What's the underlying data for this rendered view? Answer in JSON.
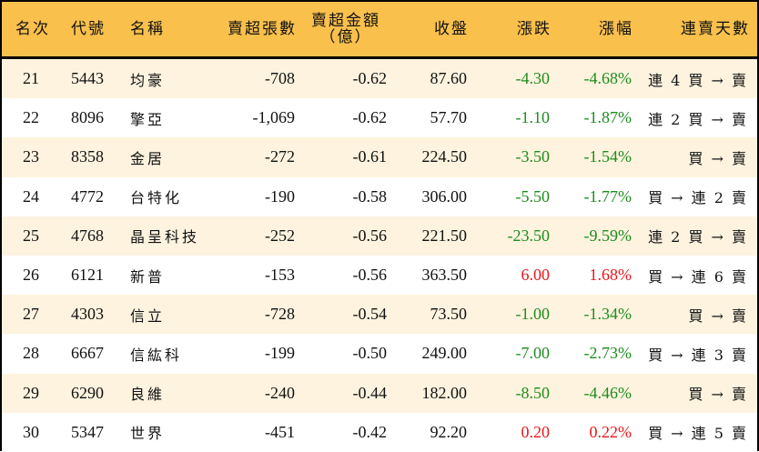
{
  "table": {
    "header": {
      "rank": "名次",
      "code": "代號",
      "name": "名稱",
      "sell_volume": "賣超張數",
      "sell_amount_line1": "賣超金額",
      "sell_amount_line2": "（億）",
      "close": "收盤",
      "change": "漲跌",
      "change_pct": "漲幅",
      "streak": "連賣天數"
    },
    "colors": {
      "header_bg": "#F9C04C",
      "row_cream": "#FDF3DE",
      "row_white": "#FFFFFF",
      "negative": "#1E8C1E",
      "positive": "#E8161C"
    },
    "rows": [
      {
        "rank": "21",
        "code": "5443",
        "name": "均豪",
        "sell_volume": "-708",
        "sell_amount": "-0.62",
        "close": "87.60",
        "change": "-4.30",
        "change_pct": "-4.68%",
        "streak": "連 4 買 → 賣",
        "direction": "neg"
      },
      {
        "rank": "22",
        "code": "8096",
        "name": "擎亞",
        "sell_volume": "-1,069",
        "sell_amount": "-0.62",
        "close": "57.70",
        "change": "-1.10",
        "change_pct": "-1.87%",
        "streak": "連 2 買 → 賣",
        "direction": "neg"
      },
      {
        "rank": "23",
        "code": "8358",
        "name": "金居",
        "sell_volume": "-272",
        "sell_amount": "-0.61",
        "close": "224.50",
        "change": "-3.50",
        "change_pct": "-1.54%",
        "streak": "買 → 賣",
        "direction": "neg"
      },
      {
        "rank": "24",
        "code": "4772",
        "name": "台特化",
        "sell_volume": "-190",
        "sell_amount": "-0.58",
        "close": "306.00",
        "change": "-5.50",
        "change_pct": "-1.77%",
        "streak": "買 → 連 2 賣",
        "direction": "neg"
      },
      {
        "rank": "25",
        "code": "4768",
        "name": "晶呈科技",
        "sell_volume": "-252",
        "sell_amount": "-0.56",
        "close": "221.50",
        "change": "-23.50",
        "change_pct": "-9.59%",
        "streak": "連 2 買 → 賣",
        "direction": "neg"
      },
      {
        "rank": "26",
        "code": "6121",
        "name": "新普",
        "sell_volume": "-153",
        "sell_amount": "-0.56",
        "close": "363.50",
        "change": "6.00",
        "change_pct": "1.68%",
        "streak": "買 → 連 6 賣",
        "direction": "pos"
      },
      {
        "rank": "27",
        "code": "4303",
        "name": "信立",
        "sell_volume": "-728",
        "sell_amount": "-0.54",
        "close": "73.50",
        "change": "-1.00",
        "change_pct": "-1.34%",
        "streak": "買 → 賣",
        "direction": "neg"
      },
      {
        "rank": "28",
        "code": "6667",
        "name": "信紘科",
        "sell_volume": "-199",
        "sell_amount": "-0.50",
        "close": "249.00",
        "change": "-7.00",
        "change_pct": "-2.73%",
        "streak": "買 → 連 3 賣",
        "direction": "neg"
      },
      {
        "rank": "29",
        "code": "6290",
        "name": "良維",
        "sell_volume": "-240",
        "sell_amount": "-0.44",
        "close": "182.00",
        "change": "-8.50",
        "change_pct": "-4.46%",
        "streak": "買 → 賣",
        "direction": "neg"
      },
      {
        "rank": "30",
        "code": "5347",
        "name": "世界",
        "sell_volume": "-451",
        "sell_amount": "-0.42",
        "close": "92.20",
        "change": "0.20",
        "change_pct": "0.22%",
        "streak": "買 → 連 5 賣",
        "direction": "pos"
      }
    ]
  }
}
